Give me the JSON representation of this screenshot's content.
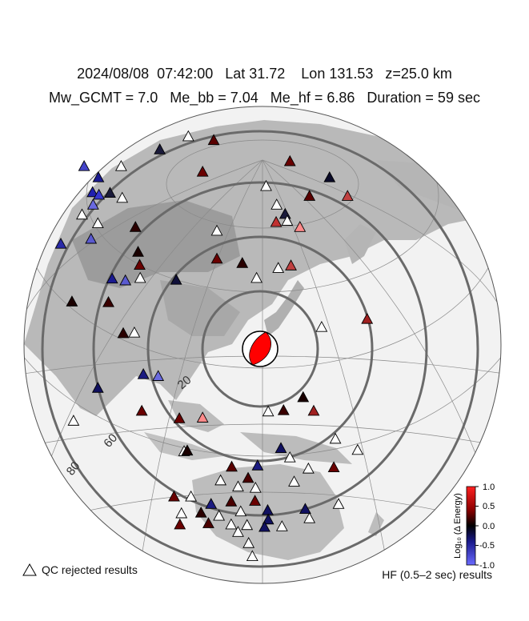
{
  "header": {
    "line1": "2024/08/08  07:42:00   Lat 31.72    Lon 131.53   z=25.0 km",
    "line2": "Mw_GCMT = 7.0   Me_bb = 7.04   Me_hf = 6.86   Duration = 59 sec"
  },
  "map": {
    "distance_rings_deg": [
      20,
      40,
      60,
      80
    ],
    "ring_labels": [
      "20",
      "60",
      "80"
    ],
    "beachball": {
      "fill": "#ff0000",
      "outline": "#000000"
    }
  },
  "stations": [
    {
      "u": 0.302,
      "v": 0.241,
      "c": "#1a1a3a"
    },
    {
      "u": 0.356,
      "v": 0.22,
      "c": "#ffffff"
    },
    {
      "u": 0.404,
      "v": 0.226,
      "c": "#5a0000"
    },
    {
      "u": 0.229,
      "v": 0.268,
      "c": "#ffffff"
    },
    {
      "u": 0.159,
      "v": 0.268,
      "c": "#4444c8"
    },
    {
      "u": 0.186,
      "v": 0.286,
      "c": "#1a1a90"
    },
    {
      "u": 0.175,
      "v": 0.31,
      "c": "#2020b0"
    },
    {
      "u": 0.187,
      "v": 0.314,
      "c": "#3838d0"
    },
    {
      "u": 0.383,
      "v": 0.277,
      "c": "#6a0000"
    },
    {
      "u": 0.548,
      "v": 0.26,
      "c": "#6a0000"
    },
    {
      "u": 0.623,
      "v": 0.286,
      "c": "#0a0a28"
    },
    {
      "u": 0.657,
      "v": 0.316,
      "c": "#c04040"
    },
    {
      "u": 0.503,
      "v": 0.3,
      "c": "#ffffff"
    },
    {
      "u": 0.585,
      "v": 0.316,
      "c": "#5a0000"
    },
    {
      "u": 0.523,
      "v": 0.33,
      "c": "#ffffff"
    },
    {
      "u": 0.539,
      "v": 0.345,
      "c": "#1a1a3a"
    },
    {
      "u": 0.543,
      "v": 0.356,
      "c": "#ffffff"
    },
    {
      "u": 0.567,
      "v": 0.366,
      "c": "#ff8a8a"
    },
    {
      "u": 0.522,
      "v": 0.358,
      "c": "#c03030"
    },
    {
      "u": 0.208,
      "v": 0.311,
      "c": "#1a1a3a"
    },
    {
      "u": 0.231,
      "v": 0.319,
      "c": "#ffffff"
    },
    {
      "u": 0.176,
      "v": 0.33,
      "c": "#6a6ae0"
    },
    {
      "u": 0.155,
      "v": 0.346,
      "c": "#ffffff"
    },
    {
      "u": 0.185,
      "v": 0.36,
      "c": "#ffffff"
    },
    {
      "u": 0.256,
      "v": 0.366,
      "c": "#2a0000"
    },
    {
      "u": 0.41,
      "v": 0.372,
      "c": "#ffffff"
    },
    {
      "u": 0.115,
      "v": 0.393,
      "c": "#2a2aa8"
    },
    {
      "u": 0.172,
      "v": 0.385,
      "c": "#5a5ad0"
    },
    {
      "u": 0.261,
      "v": 0.406,
      "c": "#1a0000"
    },
    {
      "u": 0.264,
      "v": 0.427,
      "c": "#6a0000"
    },
    {
      "u": 0.41,
      "v": 0.417,
      "c": "#6a0000"
    },
    {
      "u": 0.458,
      "v": 0.424,
      "c": "#2a0000"
    },
    {
      "u": 0.55,
      "v": 0.428,
      "c": "#c04040"
    },
    {
      "u": 0.526,
      "v": 0.432,
      "c": "#ffffff"
    },
    {
      "u": 0.212,
      "v": 0.449,
      "c": "#1a1a90"
    },
    {
      "u": 0.237,
      "v": 0.452,
      "c": "#5a5ad0"
    },
    {
      "u": 0.265,
      "v": 0.448,
      "c": "#ffffff"
    },
    {
      "u": 0.333,
      "v": 0.451,
      "c": "#10103a"
    },
    {
      "u": 0.485,
      "v": 0.448,
      "c": "#ffffff"
    },
    {
      "u": 0.136,
      "v": 0.486,
      "c": "#1a0000"
    },
    {
      "u": 0.205,
      "v": 0.487,
      "c": "#3a0000"
    },
    {
      "u": 0.233,
      "v": 0.537,
      "c": "#2a0000"
    },
    {
      "u": 0.254,
      "v": 0.536,
      "c": "#ffffff"
    },
    {
      "u": 0.608,
      "v": 0.527,
      "c": "#ffffff"
    },
    {
      "u": 0.694,
      "v": 0.514,
      "c": "#a02020"
    },
    {
      "u": 0.271,
      "v": 0.603,
      "c": "#1a1a80"
    },
    {
      "u": 0.299,
      "v": 0.606,
      "c": "#6a6ae0"
    },
    {
      "u": 0.185,
      "v": 0.625,
      "c": "#101060"
    },
    {
      "u": 0.573,
      "v": 0.64,
      "c": "#1a0000"
    },
    {
      "u": 0.268,
      "v": 0.662,
      "c": "#6a0000"
    },
    {
      "u": 0.339,
      "v": 0.674,
      "c": "#6a0000"
    },
    {
      "u": 0.383,
      "v": 0.673,
      "c": "#ff8a8a"
    },
    {
      "u": 0.507,
      "v": 0.663,
      "c": "#ffffff"
    },
    {
      "u": 0.536,
      "v": 0.661,
      "c": "#3a0000"
    },
    {
      "u": 0.593,
      "v": 0.662,
      "c": "#a02020"
    },
    {
      "u": 0.139,
      "v": 0.678,
      "c": "#ffffff"
    },
    {
      "u": 0.634,
      "v": 0.707,
      "c": "#ffffff"
    },
    {
      "u": 0.676,
      "v": 0.725,
      "c": "#ffffff"
    },
    {
      "u": 0.348,
      "v": 0.727,
      "c": "#ffffff"
    },
    {
      "u": 0.354,
      "v": 0.726,
      "c": "#1a0000"
    },
    {
      "u": 0.531,
      "v": 0.722,
      "c": "#101060"
    },
    {
      "u": 0.548,
      "v": 0.737,
      "c": "#ffffff"
    },
    {
      "u": 0.487,
      "v": 0.75,
      "c": "#1a1a80"
    },
    {
      "u": 0.438,
      "v": 0.752,
      "c": "#5a0000"
    },
    {
      "u": 0.469,
      "v": 0.77,
      "c": "#4a0000"
    },
    {
      "u": 0.583,
      "v": 0.755,
      "c": "#ffffff"
    },
    {
      "u": 0.631,
      "v": 0.753,
      "c": "#6a0000"
    },
    {
      "u": 0.556,
      "v": 0.776,
      "c": "#ffffff"
    },
    {
      "u": 0.417,
      "v": 0.774,
      "c": "#ffffff"
    },
    {
      "u": 0.45,
      "v": 0.784,
      "c": "#ffffff"
    },
    {
      "u": 0.483,
      "v": 0.786,
      "c": "#ffffff"
    },
    {
      "u": 0.329,
      "v": 0.8,
      "c": "#6a0000"
    },
    {
      "u": 0.361,
      "v": 0.8,
      "c": "#ffffff"
    },
    {
      "u": 0.399,
      "v": 0.812,
      "c": "#1a1a80"
    },
    {
      "u": 0.437,
      "v": 0.808,
      "c": "#4a0000"
    },
    {
      "u": 0.455,
      "v": 0.824,
      "c": "#ffffff"
    },
    {
      "u": 0.482,
      "v": 0.807,
      "c": "#6a0000"
    },
    {
      "u": 0.506,
      "v": 0.822,
      "c": "#101060"
    },
    {
      "u": 0.577,
      "v": 0.82,
      "c": "#101060"
    },
    {
      "u": 0.64,
      "v": 0.812,
      "c": "#ffffff"
    },
    {
      "u": 0.343,
      "v": 0.827,
      "c": "#ffffff"
    },
    {
      "u": 0.38,
      "v": 0.826,
      "c": "#2a0000"
    },
    {
      "u": 0.414,
      "v": 0.831,
      "c": "#ffffff"
    },
    {
      "u": 0.507,
      "v": 0.837,
      "c": "#101060"
    },
    {
      "u": 0.585,
      "v": 0.835,
      "c": "#ffffff"
    },
    {
      "u": 0.34,
      "v": 0.845,
      "c": "#6a0000"
    },
    {
      "u": 0.394,
      "v": 0.843,
      "c": "#4a0000"
    },
    {
      "u": 0.437,
      "v": 0.845,
      "c": "#ffffff"
    },
    {
      "u": 0.467,
      "v": 0.846,
      "c": "#ffffff"
    },
    {
      "u": 0.5,
      "v": 0.849,
      "c": "#101060"
    },
    {
      "u": 0.533,
      "v": 0.848,
      "c": "#ffffff"
    },
    {
      "u": 0.45,
      "v": 0.857,
      "c": "#ffffff"
    },
    {
      "u": 0.47,
      "v": 0.875,
      "c": "#ffffff"
    },
    {
      "u": 0.477,
      "v": 0.896,
      "c": "#ffffff"
    }
  ],
  "colorbar": {
    "label": "Log₁₀ (Δ Energy)",
    "ticks": [
      "1.0",
      "0.5",
      "0.0",
      "-0.5",
      "-1.0"
    ],
    "colors": {
      "top": "#ff2020",
      "upper": "#8a0000",
      "mid": "#000000",
      "lower": "#1a1a8a",
      "bottom": "#6a6aff"
    }
  },
  "legend": {
    "qc_label": "QC rejected results",
    "hf_label": "HF (0.5–2 sec) results"
  }
}
